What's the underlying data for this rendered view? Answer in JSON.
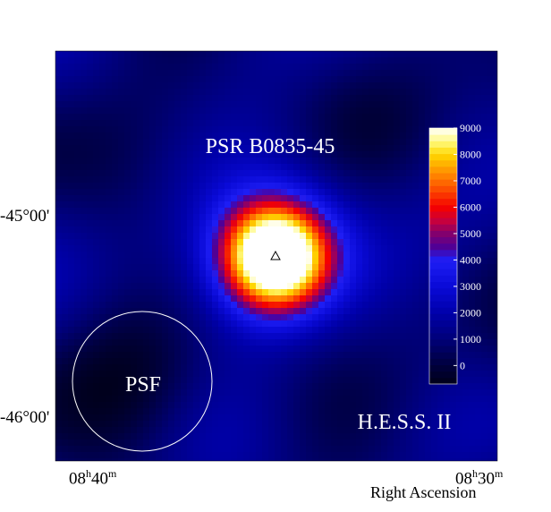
{
  "chart_data": {
    "type": "heatmap",
    "annotations": {
      "source_label": "PSR B0835-45",
      "psf_label": "PSF",
      "instrument_label": "H.E.S.S. II"
    },
    "dec_ticks": [
      "-45°00'",
      "-46°00'"
    ],
    "ra_ticks": [
      {
        "hours": "08",
        "minutes": "40"
      },
      {
        "hours": "08",
        "minutes": "30"
      }
    ],
    "xlabel": "Right Ascension",
    "ylabel": "",
    "colorbar": {
      "min": -700,
      "max": 9000,
      "ticks": [
        0,
        1000,
        2000,
        3000,
        4000,
        5000,
        6000,
        7000,
        8000,
        9000
      ]
    },
    "peak_value": 9000,
    "background_level": 1500,
    "colors": {
      "background": "#000040",
      "text": "#ffffff",
      "marker": "#000000"
    }
  }
}
